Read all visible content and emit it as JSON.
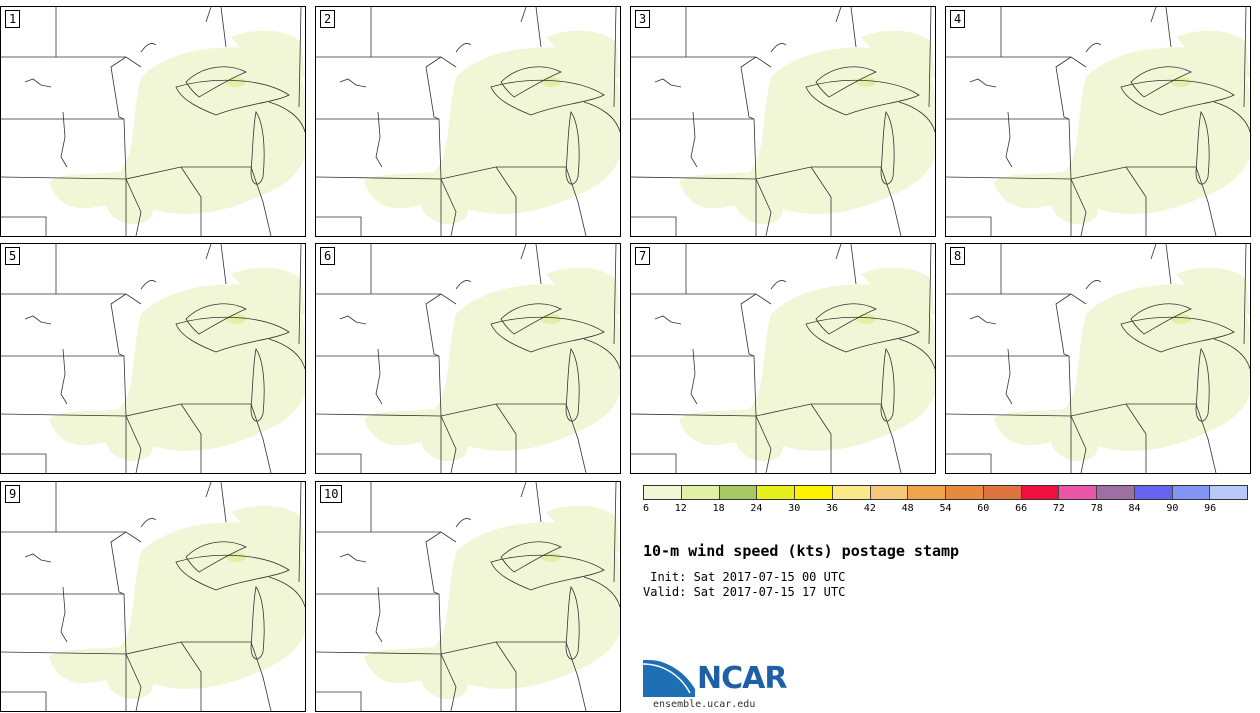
{
  "panels": [
    {
      "label": "1"
    },
    {
      "label": "2"
    },
    {
      "label": "3"
    },
    {
      "label": "4"
    },
    {
      "label": "5"
    },
    {
      "label": "6"
    },
    {
      "label": "7"
    },
    {
      "label": "8"
    },
    {
      "label": "9"
    },
    {
      "label": "10"
    }
  ],
  "colorbar": {
    "colors": [
      "#f1f7d6",
      "#e0f0a6",
      "#a8c863",
      "#e6f01c",
      "#fff200",
      "#fbe98a",
      "#f6c97a",
      "#f0a44d",
      "#e88a3e",
      "#de7440",
      "#f0103f",
      "#ea56a7",
      "#9f6fa3",
      "#6464f0",
      "#8496f5",
      "#b8c8f8"
    ],
    "ticks": [
      "6",
      "12",
      "18",
      "24",
      "30",
      "36",
      "42",
      "48",
      "54",
      "60",
      "66",
      "72",
      "78",
      "84",
      "90",
      "96"
    ]
  },
  "title": "10-m wind speed (kts) postage stamp",
  "init_text": " Init: Sat 2017-07-15 00 UTC",
  "valid_text": "Valid: Sat 2017-07-15 17 UTC",
  "logo": {
    "text": "NCAR",
    "url": "ensemble.ucar.edu"
  }
}
